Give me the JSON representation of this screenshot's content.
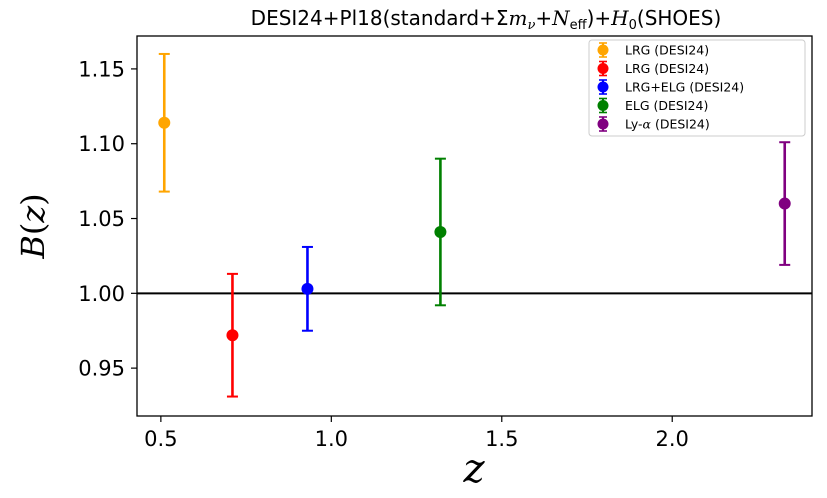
{
  "chart_data": {
    "type": "scatter",
    "title": "DESI24+Pl18(standard+Σm_ν+N_eff)+H_0(SHOES)",
    "title_parts": {
      "prefix": "DESI24+Pl18(standard+Σ",
      "m": "m",
      "nu": "ν",
      "plus": "+",
      "N": "N",
      "eff": "eff",
      "mid": ")+",
      "H": "H",
      "zero": "0",
      "suffix": "(SHOES)"
    },
    "xlabel": "z",
    "ylabel": "B(z)",
    "ylabel_parts": {
      "B": "B",
      "open": "(",
      "z": "z",
      "close": ")"
    },
    "xlim": [
      0.43,
      2.41
    ],
    "ylim": [
      0.918,
      1.172
    ],
    "xticks": [
      0.5,
      1.0,
      1.5,
      2.0
    ],
    "xtick_labels": [
      "0.5",
      "1.0",
      "1.5",
      "2.0"
    ],
    "yticks": [
      0.95,
      1.0,
      1.05,
      1.1,
      1.15
    ],
    "ytick_labels": [
      "0.95",
      "1.00",
      "1.05",
      "1.10",
      "1.15"
    ],
    "reference_line": 1.0,
    "grid": false,
    "legend_position": "upper right",
    "series": [
      {
        "name": "LRG (DESI24)",
        "color": "#ffa500",
        "x": 0.51,
        "y": 1.114,
        "yerr_low": 0.046,
        "yerr_high": 0.046
      },
      {
        "name": "LRG (DESI24)",
        "color": "#ff0000",
        "x": 0.71,
        "y": 0.972,
        "yerr_low": 0.041,
        "yerr_high": 0.041
      },
      {
        "name": "LRG+ELG (DESI24)",
        "color": "#0000ff",
        "x": 0.93,
        "y": 1.003,
        "yerr_low": 0.028,
        "yerr_high": 0.028
      },
      {
        "name": "ELG (DESI24)",
        "color": "#008000",
        "x": 1.32,
        "y": 1.041,
        "yerr_low": 0.049,
        "yerr_high": 0.049
      },
      {
        "name": "Ly-α (DESI24)",
        "color": "#800080",
        "x": 2.33,
        "y": 1.06,
        "yerr_low": 0.041,
        "yerr_high": 0.041
      }
    ],
    "legend_labels": {
      "lya_prefix": "Ly-",
      "lya_alpha": "α",
      "lya_suffix": " (DESI24)"
    }
  }
}
